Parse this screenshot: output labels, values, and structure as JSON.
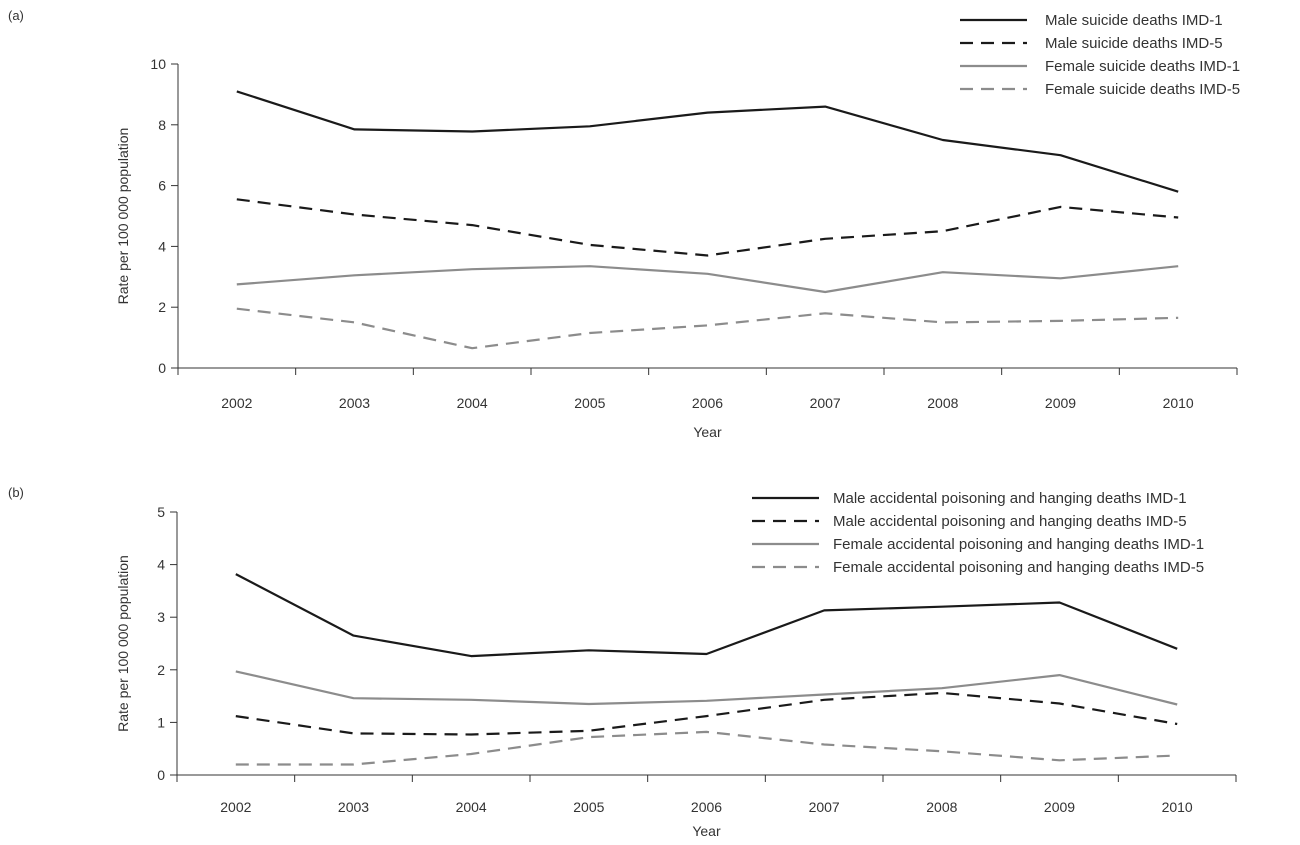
{
  "chart_data": [
    {
      "type": "line",
      "panel_label": "(a)",
      "categories": [
        "2002",
        "2003",
        "2004",
        "2005",
        "2006",
        "2007",
        "2008",
        "2009",
        "2010"
      ],
      "xlabel": "Year",
      "ylabel": "Rate per 100 000 population",
      "ylim": [
        0,
        10
      ],
      "yticks": [
        "0",
        "2",
        "4",
        "6",
        "8",
        "10"
      ],
      "grid": false,
      "legend_position": "top-right",
      "series": [
        {
          "name": "Male suicide deaths IMD-1",
          "values": [
            9.1,
            7.85,
            7.78,
            7.95,
            8.4,
            8.6,
            7.5,
            7.0,
            5.8
          ],
          "color": "#1a1a1a",
          "dash": "solid"
        },
        {
          "name": "Male suicide deaths IMD-5",
          "values": [
            5.55,
            5.05,
            4.7,
            4.05,
            3.7,
            4.25,
            4.5,
            5.3,
            4.95
          ],
          "color": "#1a1a1a",
          "dash": "dashed"
        },
        {
          "name": "Female suicide deaths IMD-1",
          "values": [
            2.75,
            3.05,
            3.25,
            3.35,
            3.1,
            2.5,
            3.15,
            2.95,
            3.35
          ],
          "color": "#8c8c8c",
          "dash": "solid"
        },
        {
          "name": "Female suicide deaths IMD-5",
          "values": [
            1.95,
            1.5,
            0.65,
            1.15,
            1.4,
            1.8,
            1.5,
            1.55,
            1.65
          ],
          "color": "#8c8c8c",
          "dash": "dashed"
        }
      ]
    },
    {
      "type": "line",
      "panel_label": "(b)",
      "categories": [
        "2002",
        "2003",
        "2004",
        "2005",
        "2006",
        "2007",
        "2008",
        "2009",
        "2010"
      ],
      "xlabel": "Year",
      "ylabel": "Rate per 100 000 population",
      "ylim": [
        0,
        5
      ],
      "yticks": [
        "0",
        "1",
        "2",
        "3",
        "4",
        "5"
      ],
      "grid": false,
      "legend_position": "top-right",
      "series": [
        {
          "name": "Male accidental poisoning and hanging deaths IMD-1",
          "values": [
            3.82,
            2.65,
            2.26,
            2.37,
            2.3,
            3.13,
            3.2,
            3.28,
            2.4
          ],
          "color": "#1a1a1a",
          "dash": "solid"
        },
        {
          "name": "Male accidental poisoning and hanging deaths IMD-5",
          "values": [
            1.12,
            0.79,
            0.77,
            0.84,
            1.12,
            1.43,
            1.56,
            1.36,
            0.97
          ],
          "color": "#1a1a1a",
          "dash": "dashed"
        },
        {
          "name": "Female accidental poisoning and hanging deaths IMD-1",
          "values": [
            1.97,
            1.46,
            1.43,
            1.35,
            1.41,
            1.53,
            1.65,
            1.9,
            1.34
          ],
          "color": "#8c8c8c",
          "dash": "solid"
        },
        {
          "name": "Female accidental poisoning and hanging deaths IMD-5",
          "values": [
            0.2,
            0.2,
            0.4,
            0.72,
            0.82,
            0.58,
            0.45,
            0.28,
            0.37
          ],
          "color": "#8c8c8c",
          "dash": "dashed"
        }
      ]
    }
  ]
}
